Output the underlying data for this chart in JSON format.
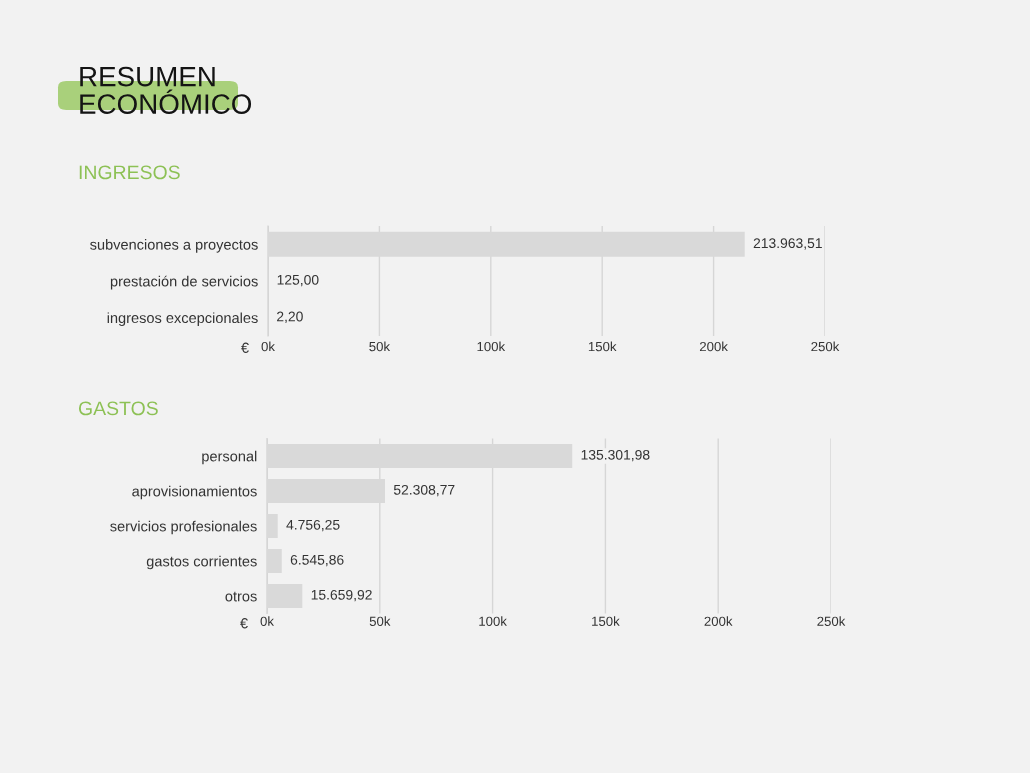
{
  "chart_data": [
    {
      "type": "bar",
      "orientation": "horizontal",
      "title": "RESUMEN\nECONÓMICO",
      "subtitle": "INGRESOS",
      "xlabel": "€",
      "categories": [
        "subvenciones a proyectos",
        "prestación de servicios",
        "ingresos excepcionales"
      ],
      "values": [
        213963.51,
        125.0,
        2.2
      ],
      "color": "#d9d9d9",
      "value_labels": [
        "213.963,51",
        "125,00",
        "2,20"
      ],
      "xlim": [
        0,
        250000
      ],
      "xticks": [
        {
          "value": 0,
          "label": "0k"
        },
        {
          "value": 50000,
          "label": "50k"
        },
        {
          "value": 100000,
          "label": "100k"
        },
        {
          "value": 150000,
          "label": "150k"
        },
        {
          "value": 200000,
          "label": "200k"
        },
        {
          "value": 250000,
          "label": "250k"
        }
      ],
      "grid": "x"
    },
    {
      "type": "bar",
      "orientation": "horizontal",
      "title": "GASTOS",
      "xlabel": "€",
      "categories": [
        "personal",
        "aprovisionamientos",
        "servicios profesionales",
        "gastos corrientes",
        "otros"
      ],
      "values": [
        135301.98,
        52308.77,
        4756.25,
        6545.86,
        15659.92
      ],
      "color": "#d9d9d9",
      "value_labels": [
        "135.301,98",
        "52.308,77",
        "4.756,25",
        "6.545,86",
        "15.659,92"
      ],
      "xlim": [
        0,
        250000
      ],
      "xticks": [
        {
          "value": 0,
          "label": "0k"
        },
        {
          "value": 50000,
          "label": "50k"
        },
        {
          "value": 100000,
          "label": "100k"
        },
        {
          "value": 150000,
          "label": "150k"
        },
        {
          "value": 200000,
          "label": "200k"
        },
        {
          "value": 250000,
          "label": "250k"
        }
      ],
      "grid": "x"
    }
  ]
}
